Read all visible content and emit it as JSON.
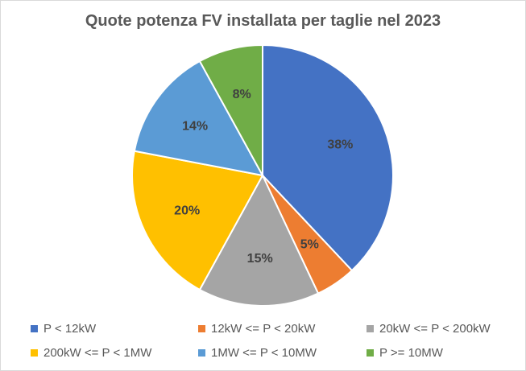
{
  "chart_data": {
    "type": "pie",
    "title": "Quote potenza FV installata per taglie nel 2023",
    "categories": [
      "P < 12kW",
      "12kW <= P < 20kW",
      "20kW <= P < 200kW",
      "200kW <= P < 1MW",
      "1MW <= P < 10MW",
      "P >= 10MW"
    ],
    "values": [
      38,
      5,
      15,
      20,
      14,
      8
    ],
    "labels": [
      "38%",
      "5%",
      "15%",
      "20%",
      "14%",
      "8%"
    ],
    "colors": [
      "#4472c4",
      "#ed7d31",
      "#a5a5a5",
      "#ffc000",
      "#5b9bd5",
      "#70ad47"
    ],
    "unit": "%",
    "legend_position": "bottom"
  }
}
